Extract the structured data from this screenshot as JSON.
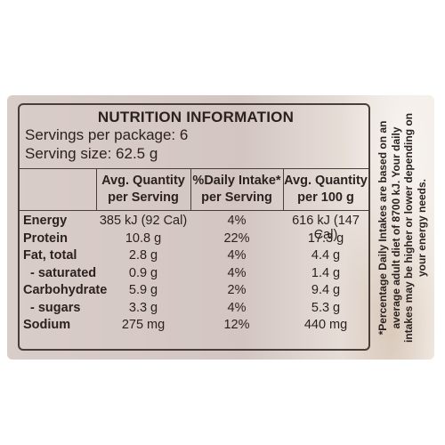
{
  "label": {
    "title": "NUTRITION INFORMATION",
    "servings_per_package": "Servings per package: 6",
    "serving_size": "Serving size: 62.5 g",
    "columns": [
      "Avg. Quantity per Serving",
      "%Daily Intake* per Serving",
      "Avg. Quantity per 100 g"
    ],
    "rows": [
      {
        "name": "Energy",
        "per_serving": "385 kJ (92 Cal)",
        "daily_intake": "4%",
        "per_100g": "616 kJ (147 Cal)"
      },
      {
        "name": "Protein",
        "per_serving": "10.8 g",
        "daily_intake": "22%",
        "per_100g": "17.3 g"
      },
      {
        "name": "Fat, total",
        "per_serving": "2.8 g",
        "daily_intake": "4%",
        "per_100g": "4.4 g"
      },
      {
        "name": "- saturated",
        "per_serving": "0.9 g",
        "daily_intake": "4%",
        "per_100g": "1.4 g"
      },
      {
        "name": "Carbohydrate",
        "per_serving": "5.9 g",
        "daily_intake": "2%",
        "per_100g": "9.4 g"
      },
      {
        "name": "- sugars",
        "per_serving": "3.3 g",
        "daily_intake": "4%",
        "per_100g": "5.3 g"
      },
      {
        "name": "Sodium",
        "per_serving": "275 mg",
        "daily_intake": "12%",
        "per_100g": "440 mg"
      }
    ],
    "footnote": "*Percentage Daily Intakes are based on an average adult diet of 8700 kJ. Your daily intakes may be higher or lower depending on your energy needs."
  }
}
